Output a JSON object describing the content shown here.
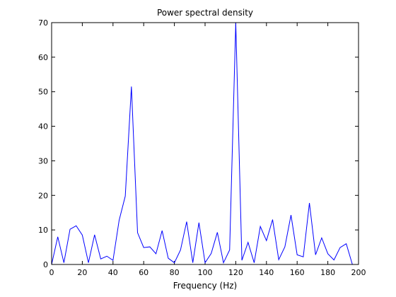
{
  "chart_data": {
    "type": "line",
    "title": "Power spectral density",
    "xlabel": "Frequency (Hz)",
    "ylabel": "",
    "xlim": [
      0,
      200
    ],
    "ylim": [
      0,
      70
    ],
    "xticks": [
      0,
      20,
      40,
      60,
      80,
      100,
      120,
      140,
      160,
      180,
      200
    ],
    "yticks": [
      0,
      10,
      20,
      30,
      40,
      50,
      60,
      70
    ],
    "grid": false,
    "line_color": "#0000ff",
    "x": [
      0,
      4,
      8,
      12,
      16,
      20,
      24,
      28,
      32,
      36,
      40,
      44,
      48,
      52,
      56,
      60,
      64,
      68,
      72,
      76,
      80,
      84,
      88,
      92,
      96,
      100,
      104,
      108,
      112,
      116,
      120,
      124,
      128,
      132,
      136,
      140,
      144,
      148,
      152,
      156,
      160,
      164,
      168,
      172,
      176,
      180,
      184,
      188,
      192,
      196
    ],
    "y": [
      0,
      8,
      0.5,
      10.2,
      11.2,
      8.5,
      0.5,
      8.6,
      1.6,
      2.4,
      1.2,
      12.8,
      19.8,
      51.5,
      9.2,
      4.9,
      5.1,
      3.1,
      9.8,
      1.8,
      0.5,
      4.2,
      12.4,
      0.5,
      12.1,
      0.5,
      3.2,
      9.3,
      0.5,
      4.2,
      70,
      1.2,
      6.4,
      0.5,
      11,
      6.9,
      13,
      1.4,
      5.1,
      14.3,
      2.8,
      2.2,
      17.8,
      2.8,
      7.7,
      3.1,
      1.3,
      4.9,
      6,
      0
    ]
  }
}
